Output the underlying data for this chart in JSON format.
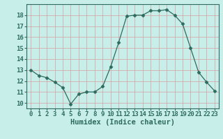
{
  "x": [
    0,
    1,
    2,
    3,
    4,
    5,
    6,
    7,
    8,
    9,
    10,
    11,
    12,
    13,
    14,
    15,
    16,
    17,
    18,
    19,
    20,
    21,
    22,
    23
  ],
  "y": [
    13.0,
    12.5,
    12.3,
    11.9,
    11.4,
    9.9,
    10.8,
    11.0,
    11.0,
    11.5,
    13.3,
    15.5,
    17.9,
    18.0,
    18.0,
    18.4,
    18.4,
    18.5,
    18.0,
    17.2,
    15.0,
    12.8,
    11.9,
    11.1
  ],
  "xlabel": "Humidex (Indice chaleur)",
  "xlim": [
    -0.5,
    23.5
  ],
  "ylim": [
    9.5,
    19.0
  ],
  "yticks": [
    10,
    11,
    12,
    13,
    14,
    15,
    16,
    17,
    18
  ],
  "xticks": [
    0,
    1,
    2,
    3,
    4,
    5,
    6,
    7,
    8,
    9,
    10,
    11,
    12,
    13,
    14,
    15,
    16,
    17,
    18,
    19,
    20,
    21,
    22,
    23
  ],
  "line_color": "#2d6b5e",
  "marker": "D",
  "marker_size": 2.5,
  "bg_color": "#c8eeea",
  "grid_color": "#d4a0a0",
  "tick_label_color": "#2d6b5e",
  "xlabel_color": "#2d6b5e",
  "xlabel_fontsize": 7.5,
  "tick_fontsize": 6.5
}
